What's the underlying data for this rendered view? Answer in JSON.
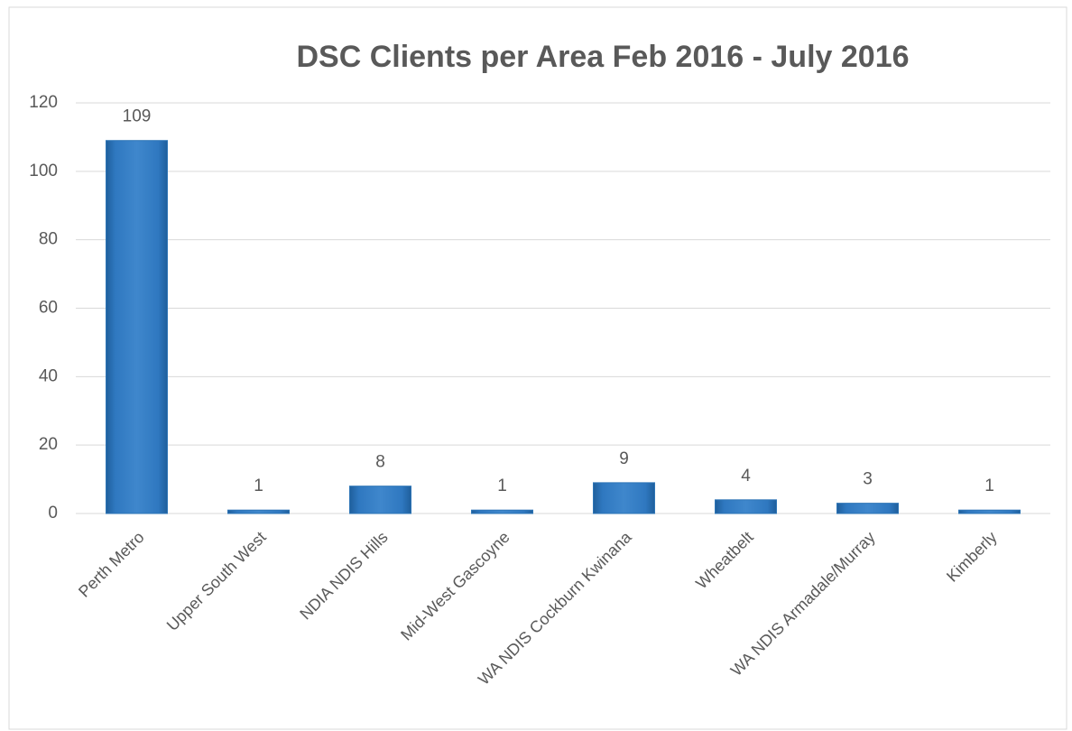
{
  "chart_data": {
    "type": "bar",
    "title": "DSC Clients per Area Feb 2016 - July 2016",
    "categories": [
      "Perth Metro",
      "Upper South West",
      "NDIA NDIS Hills",
      "Mid-West Gascoyne",
      "WA NDIS Cockburn Kwinana",
      "Wheatbelt",
      "WA NDIS Armadale/Murray",
      "Kimberly"
    ],
    "values": [
      109,
      1,
      8,
      1,
      9,
      4,
      3,
      1
    ],
    "color": "#2e75b6",
    "ylim": [
      0,
      120
    ],
    "yticks": [
      0,
      20,
      40,
      60,
      80,
      100,
      120
    ],
    "grid": true
  }
}
